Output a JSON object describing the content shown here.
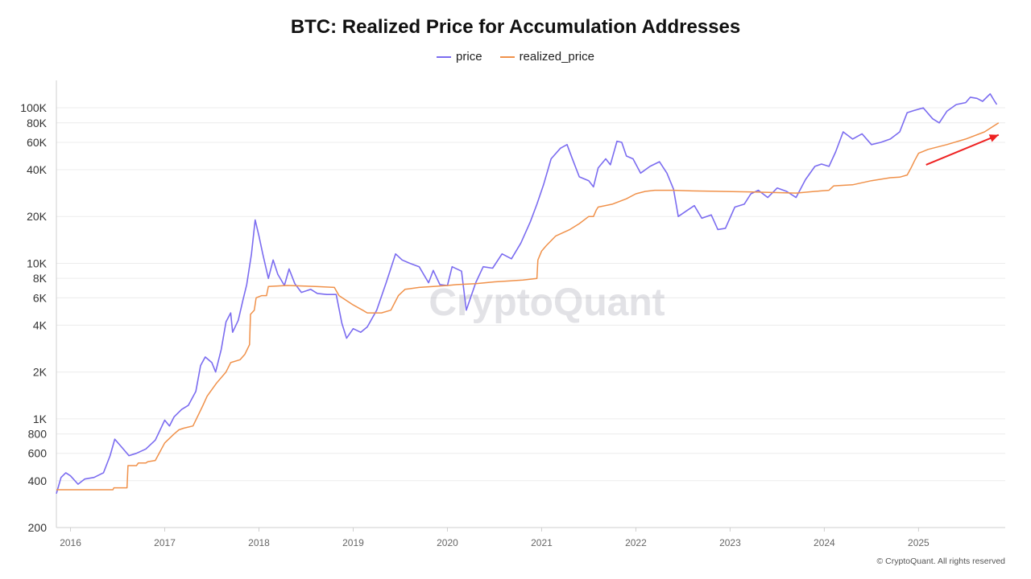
{
  "chart_data": {
    "type": "line",
    "title": "BTC: Realized Price for Accumulation Addresses",
    "yscale": "log",
    "ylim": [
      200,
      150000
    ],
    "xlim": [
      2015.85,
      2025.92
    ],
    "y_ticks": [
      {
        "value": 100000,
        "label": "100K"
      },
      {
        "value": 80000,
        "label": "80K"
      },
      {
        "value": 60000,
        "label": "60K"
      },
      {
        "value": 40000,
        "label": "40K"
      },
      {
        "value": 20000,
        "label": "20K"
      },
      {
        "value": 10000,
        "label": "10K"
      },
      {
        "value": 8000,
        "label": "8K"
      },
      {
        "value": 6000,
        "label": "6K"
      },
      {
        "value": 4000,
        "label": "4K"
      },
      {
        "value": 2000,
        "label": "2K"
      },
      {
        "value": 1000,
        "label": "1K"
      },
      {
        "value": 800,
        "label": "800"
      },
      {
        "value": 600,
        "label": "600"
      },
      {
        "value": 400,
        "label": "400"
      },
      {
        "value": 200,
        "label": "200"
      }
    ],
    "x_ticks": [
      "2016",
      "2017",
      "2018",
      "2019",
      "2020",
      "2021",
      "2022",
      "2023",
      "2024",
      "2025"
    ],
    "legend": "top-center",
    "grid": true,
    "series": [
      {
        "name": "price",
        "color": "#7b6cf0",
        "points": [
          [
            2015.85,
            330
          ],
          [
            2015.9,
            420
          ],
          [
            2015.95,
            450
          ],
          [
            2016.0,
            430
          ],
          [
            2016.08,
            380
          ],
          [
            2016.15,
            410
          ],
          [
            2016.25,
            420
          ],
          [
            2016.35,
            450
          ],
          [
            2016.42,
            580
          ],
          [
            2016.47,
            740
          ],
          [
            2016.55,
            650
          ],
          [
            2016.62,
            580
          ],
          [
            2016.7,
            600
          ],
          [
            2016.8,
            640
          ],
          [
            2016.9,
            730
          ],
          [
            2017.0,
            980
          ],
          [
            2017.05,
            900
          ],
          [
            2017.1,
            1030
          ],
          [
            2017.18,
            1150
          ],
          [
            2017.25,
            1220
          ],
          [
            2017.33,
            1500
          ],
          [
            2017.38,
            2200
          ],
          [
            2017.43,
            2500
          ],
          [
            2017.5,
            2300
          ],
          [
            2017.54,
            2000
          ],
          [
            2017.6,
            2800
          ],
          [
            2017.65,
            4200
          ],
          [
            2017.7,
            4800
          ],
          [
            2017.72,
            3600
          ],
          [
            2017.78,
            4300
          ],
          [
            2017.83,
            5800
          ],
          [
            2017.87,
            7300
          ],
          [
            2017.92,
            11500
          ],
          [
            2017.96,
            19000
          ],
          [
            2018.0,
            15000
          ],
          [
            2018.04,
            11500
          ],
          [
            2018.1,
            8000
          ],
          [
            2018.15,
            10500
          ],
          [
            2018.2,
            8500
          ],
          [
            2018.27,
            7200
          ],
          [
            2018.32,
            9200
          ],
          [
            2018.38,
            7400
          ],
          [
            2018.45,
            6500
          ],
          [
            2018.55,
            6800
          ],
          [
            2018.62,
            6400
          ],
          [
            2018.72,
            6300
          ],
          [
            2018.82,
            6300
          ],
          [
            2018.88,
            4100
          ],
          [
            2018.93,
            3300
          ],
          [
            2019.0,
            3800
          ],
          [
            2019.08,
            3600
          ],
          [
            2019.15,
            3900
          ],
          [
            2019.25,
            5000
          ],
          [
            2019.35,
            7500
          ],
          [
            2019.45,
            11500
          ],
          [
            2019.52,
            10500
          ],
          [
            2019.6,
            10000
          ],
          [
            2019.7,
            9500
          ],
          [
            2019.8,
            7500
          ],
          [
            2019.85,
            9000
          ],
          [
            2019.92,
            7300
          ],
          [
            2020.0,
            7200
          ],
          [
            2020.05,
            9500
          ],
          [
            2020.15,
            8900
          ],
          [
            2020.2,
            5000
          ],
          [
            2020.3,
            7500
          ],
          [
            2020.38,
            9500
          ],
          [
            2020.48,
            9300
          ],
          [
            2020.58,
            11500
          ],
          [
            2020.68,
            10700
          ],
          [
            2020.78,
            13500
          ],
          [
            2020.88,
            18500
          ],
          [
            2020.95,
            24000
          ],
          [
            2021.02,
            32000
          ],
          [
            2021.1,
            47000
          ],
          [
            2021.2,
            55000
          ],
          [
            2021.27,
            58000
          ],
          [
            2021.32,
            48000
          ],
          [
            2021.4,
            36000
          ],
          [
            2021.5,
            34000
          ],
          [
            2021.55,
            31000
          ],
          [
            2021.6,
            41000
          ],
          [
            2021.68,
            47000
          ],
          [
            2021.73,
            43000
          ],
          [
            2021.8,
            61000
          ],
          [
            2021.85,
            60000
          ],
          [
            2021.9,
            49000
          ],
          [
            2021.97,
            47000
          ],
          [
            2022.05,
            38000
          ],
          [
            2022.15,
            42000
          ],
          [
            2022.25,
            45000
          ],
          [
            2022.33,
            38000
          ],
          [
            2022.4,
            30000
          ],
          [
            2022.45,
            20000
          ],
          [
            2022.55,
            22000
          ],
          [
            2022.62,
            23500
          ],
          [
            2022.7,
            19500
          ],
          [
            2022.8,
            20500
          ],
          [
            2022.87,
            16500
          ],
          [
            2022.95,
            16800
          ],
          [
            2023.05,
            23000
          ],
          [
            2023.15,
            24000
          ],
          [
            2023.22,
            28000
          ],
          [
            2023.3,
            29500
          ],
          [
            2023.4,
            26500
          ],
          [
            2023.5,
            30500
          ],
          [
            2023.6,
            29000
          ],
          [
            2023.7,
            26500
          ],
          [
            2023.8,
            34500
          ],
          [
            2023.9,
            42000
          ],
          [
            2023.97,
            43500
          ],
          [
            2024.05,
            42000
          ],
          [
            2024.12,
            52000
          ],
          [
            2024.2,
            70000
          ],
          [
            2024.3,
            63000
          ],
          [
            2024.4,
            68000
          ],
          [
            2024.5,
            58000
          ],
          [
            2024.6,
            60000
          ],
          [
            2024.7,
            63000
          ],
          [
            2024.8,
            70000
          ],
          [
            2024.88,
            93000
          ],
          [
            2024.95,
            96000
          ],
          [
            2025.05,
            100000
          ],
          [
            2025.15,
            85000
          ],
          [
            2025.22,
            80000
          ],
          [
            2025.3,
            95000
          ],
          [
            2025.4,
            105000
          ],
          [
            2025.5,
            108000
          ],
          [
            2025.55,
            117000
          ],
          [
            2025.62,
            115000
          ],
          [
            2025.68,
            110000
          ],
          [
            2025.76,
            123000
          ],
          [
            2025.8,
            112000
          ],
          [
            2025.83,
            105000
          ]
        ]
      },
      {
        "name": "realized_price",
        "color": "#f0914a",
        "points": [
          [
            2015.85,
            350
          ],
          [
            2016.45,
            350
          ],
          [
            2016.46,
            360
          ],
          [
            2016.6,
            360
          ],
          [
            2016.61,
            500
          ],
          [
            2016.7,
            500
          ],
          [
            2016.72,
            520
          ],
          [
            2016.8,
            520
          ],
          [
            2016.82,
            530
          ],
          [
            2016.9,
            540
          ],
          [
            2017.0,
            700
          ],
          [
            2017.1,
            800
          ],
          [
            2017.15,
            850
          ],
          [
            2017.2,
            870
          ],
          [
            2017.3,
            900
          ],
          [
            2017.4,
            1200
          ],
          [
            2017.45,
            1400
          ],
          [
            2017.55,
            1700
          ],
          [
            2017.65,
            2000
          ],
          [
            2017.7,
            2300
          ],
          [
            2017.8,
            2400
          ],
          [
            2017.85,
            2600
          ],
          [
            2017.9,
            3000
          ],
          [
            2017.91,
            4700
          ],
          [
            2017.95,
            5000
          ],
          [
            2017.97,
            6000
          ],
          [
            2018.03,
            6200
          ],
          [
            2018.08,
            6200
          ],
          [
            2018.1,
            7100
          ],
          [
            2018.3,
            7200
          ],
          [
            2018.6,
            7100
          ],
          [
            2018.8,
            7000
          ],
          [
            2018.85,
            6200
          ],
          [
            2019.0,
            5400
          ],
          [
            2019.1,
            5000
          ],
          [
            2019.15,
            4800
          ],
          [
            2019.3,
            4800
          ],
          [
            2019.4,
            5000
          ],
          [
            2019.48,
            6200
          ],
          [
            2019.55,
            6800
          ],
          [
            2019.7,
            7000
          ],
          [
            2019.85,
            7100
          ],
          [
            2020.0,
            7200
          ],
          [
            2020.1,
            7300
          ],
          [
            2020.3,
            7400
          ],
          [
            2020.5,
            7600
          ],
          [
            2020.8,
            7800
          ],
          [
            2020.95,
            8000
          ],
          [
            2020.96,
            10500
          ],
          [
            2021.0,
            12000
          ],
          [
            2021.05,
            13000
          ],
          [
            2021.15,
            15000
          ],
          [
            2021.3,
            16500
          ],
          [
            2021.4,
            18000
          ],
          [
            2021.5,
            20000
          ],
          [
            2021.55,
            20000
          ],
          [
            2021.58,
            22000
          ],
          [
            2021.6,
            23000
          ],
          [
            2021.75,
            24000
          ],
          [
            2021.9,
            26000
          ],
          [
            2022.0,
            28000
          ],
          [
            2022.1,
            29000
          ],
          [
            2022.2,
            29500
          ],
          [
            2022.4,
            29500
          ],
          [
            2022.6,
            29200
          ],
          [
            2022.9,
            29000
          ],
          [
            2023.2,
            28800
          ],
          [
            2023.5,
            28500
          ],
          [
            2023.7,
            28300
          ],
          [
            2023.9,
            29000
          ],
          [
            2024.05,
            29500
          ],
          [
            2024.1,
            31500
          ],
          [
            2024.3,
            32000
          ],
          [
            2024.5,
            34000
          ],
          [
            2024.7,
            35500
          ],
          [
            2024.8,
            35800
          ],
          [
            2024.88,
            37000
          ],
          [
            2024.92,
            41000
          ],
          [
            2024.96,
            46000
          ],
          [
            2025.0,
            51000
          ],
          [
            2025.1,
            54000
          ],
          [
            2025.3,
            58000
          ],
          [
            2025.5,
            63000
          ],
          [
            2025.7,
            70000
          ],
          [
            2025.85,
            80000
          ]
        ]
      }
    ],
    "annotations": [
      {
        "type": "arrow",
        "color": "#ee2222",
        "from": [
          2025.08,
          43000
        ],
        "to": [
          2025.85,
          67000
        ]
      }
    ],
    "watermark": "CryptoQuant"
  },
  "copyright": "© CryptoQuant. All rights reserved"
}
